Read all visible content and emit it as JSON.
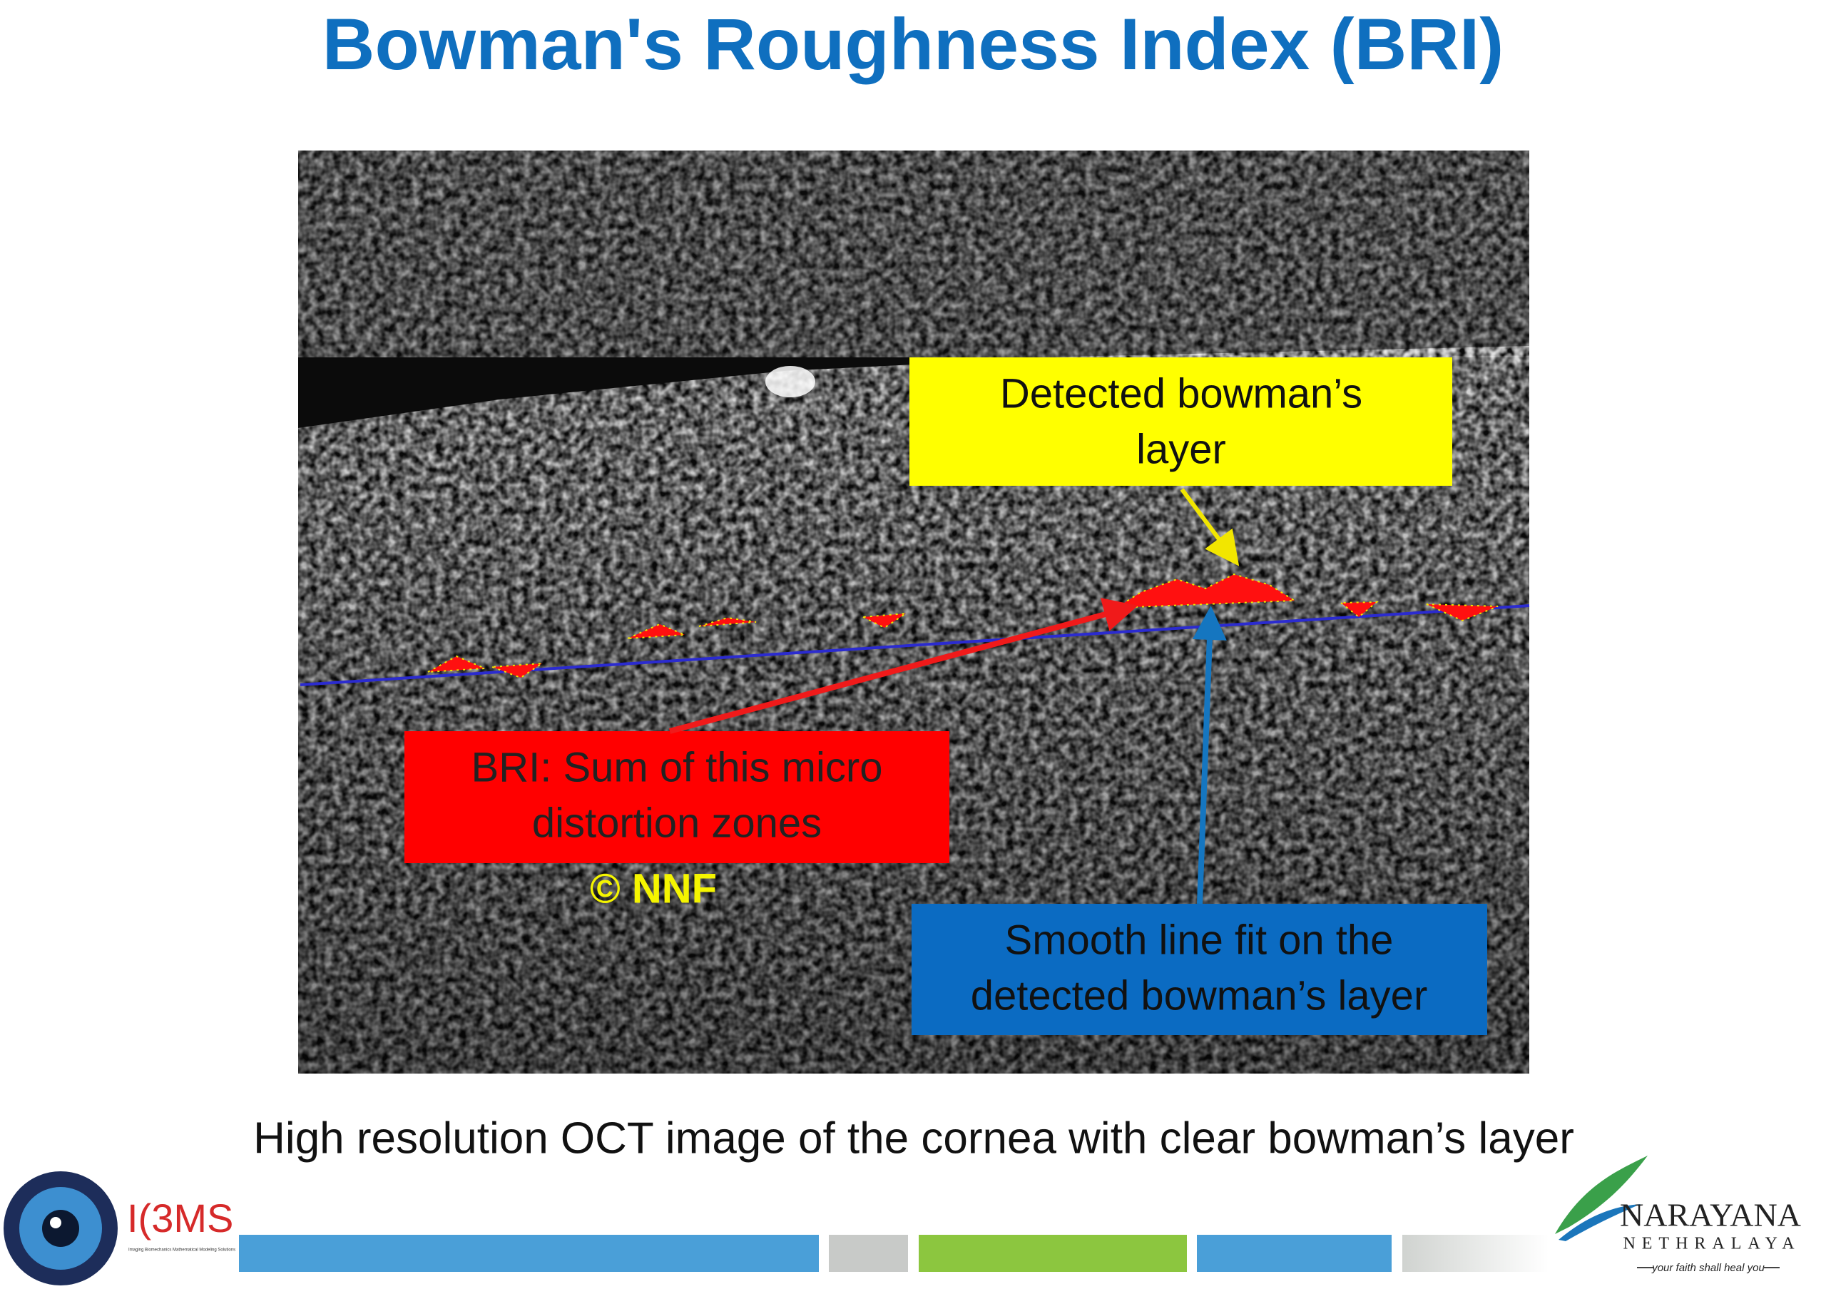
{
  "header": {
    "title": "Bowman's Roughness Index (BRI)"
  },
  "figure": {
    "callouts": [
      {
        "lines": [
          "Detected bowman’s",
          "layer"
        ]
      },
      {
        "lines": [
          "BRI: Sum of this micro",
          "distortion zones"
        ]
      },
      {
        "lines": [
          "Smooth line fit on the",
          "detected bowman’s layer"
        ]
      }
    ],
    "watermark": "© NNF",
    "caption": "High resolution OCT image of the cornea with clear bowman’s layer"
  },
  "footer": {
    "left_logo": {
      "name": "I(3MS",
      "tagline": "Imaging Biomechanics Mathematical Modeling Solutions"
    },
    "right_logo": {
      "name": "NARAYANA",
      "subname": "NETHRALAYA",
      "tagline": "your faith shall heal you"
    }
  }
}
